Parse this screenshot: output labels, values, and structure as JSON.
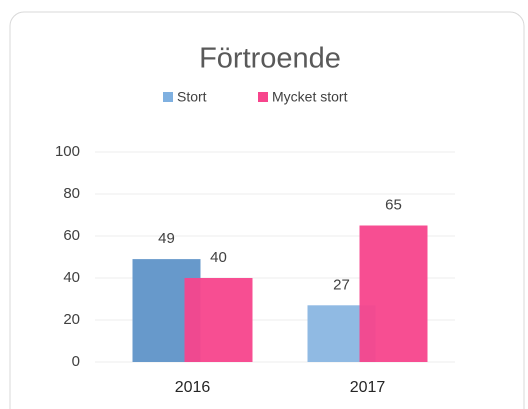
{
  "chart_data": {
    "type": "bar",
    "title": "Förtroende",
    "categories": [
      "2016",
      "2017"
    ],
    "series": [
      {
        "name": "Stort",
        "color": "#7fb0e0",
        "colors": [
          "#5f93c8",
          "#8ab6e2"
        ],
        "values": [
          49,
          27
        ]
      },
      {
        "name": "Mycket stort",
        "color": "#f7458c",
        "values": [
          40,
          65
        ]
      }
    ],
    "ylim": [
      0,
      100
    ],
    "yticks": [
      0,
      20,
      40,
      60,
      80,
      100
    ],
    "grid": true
  }
}
